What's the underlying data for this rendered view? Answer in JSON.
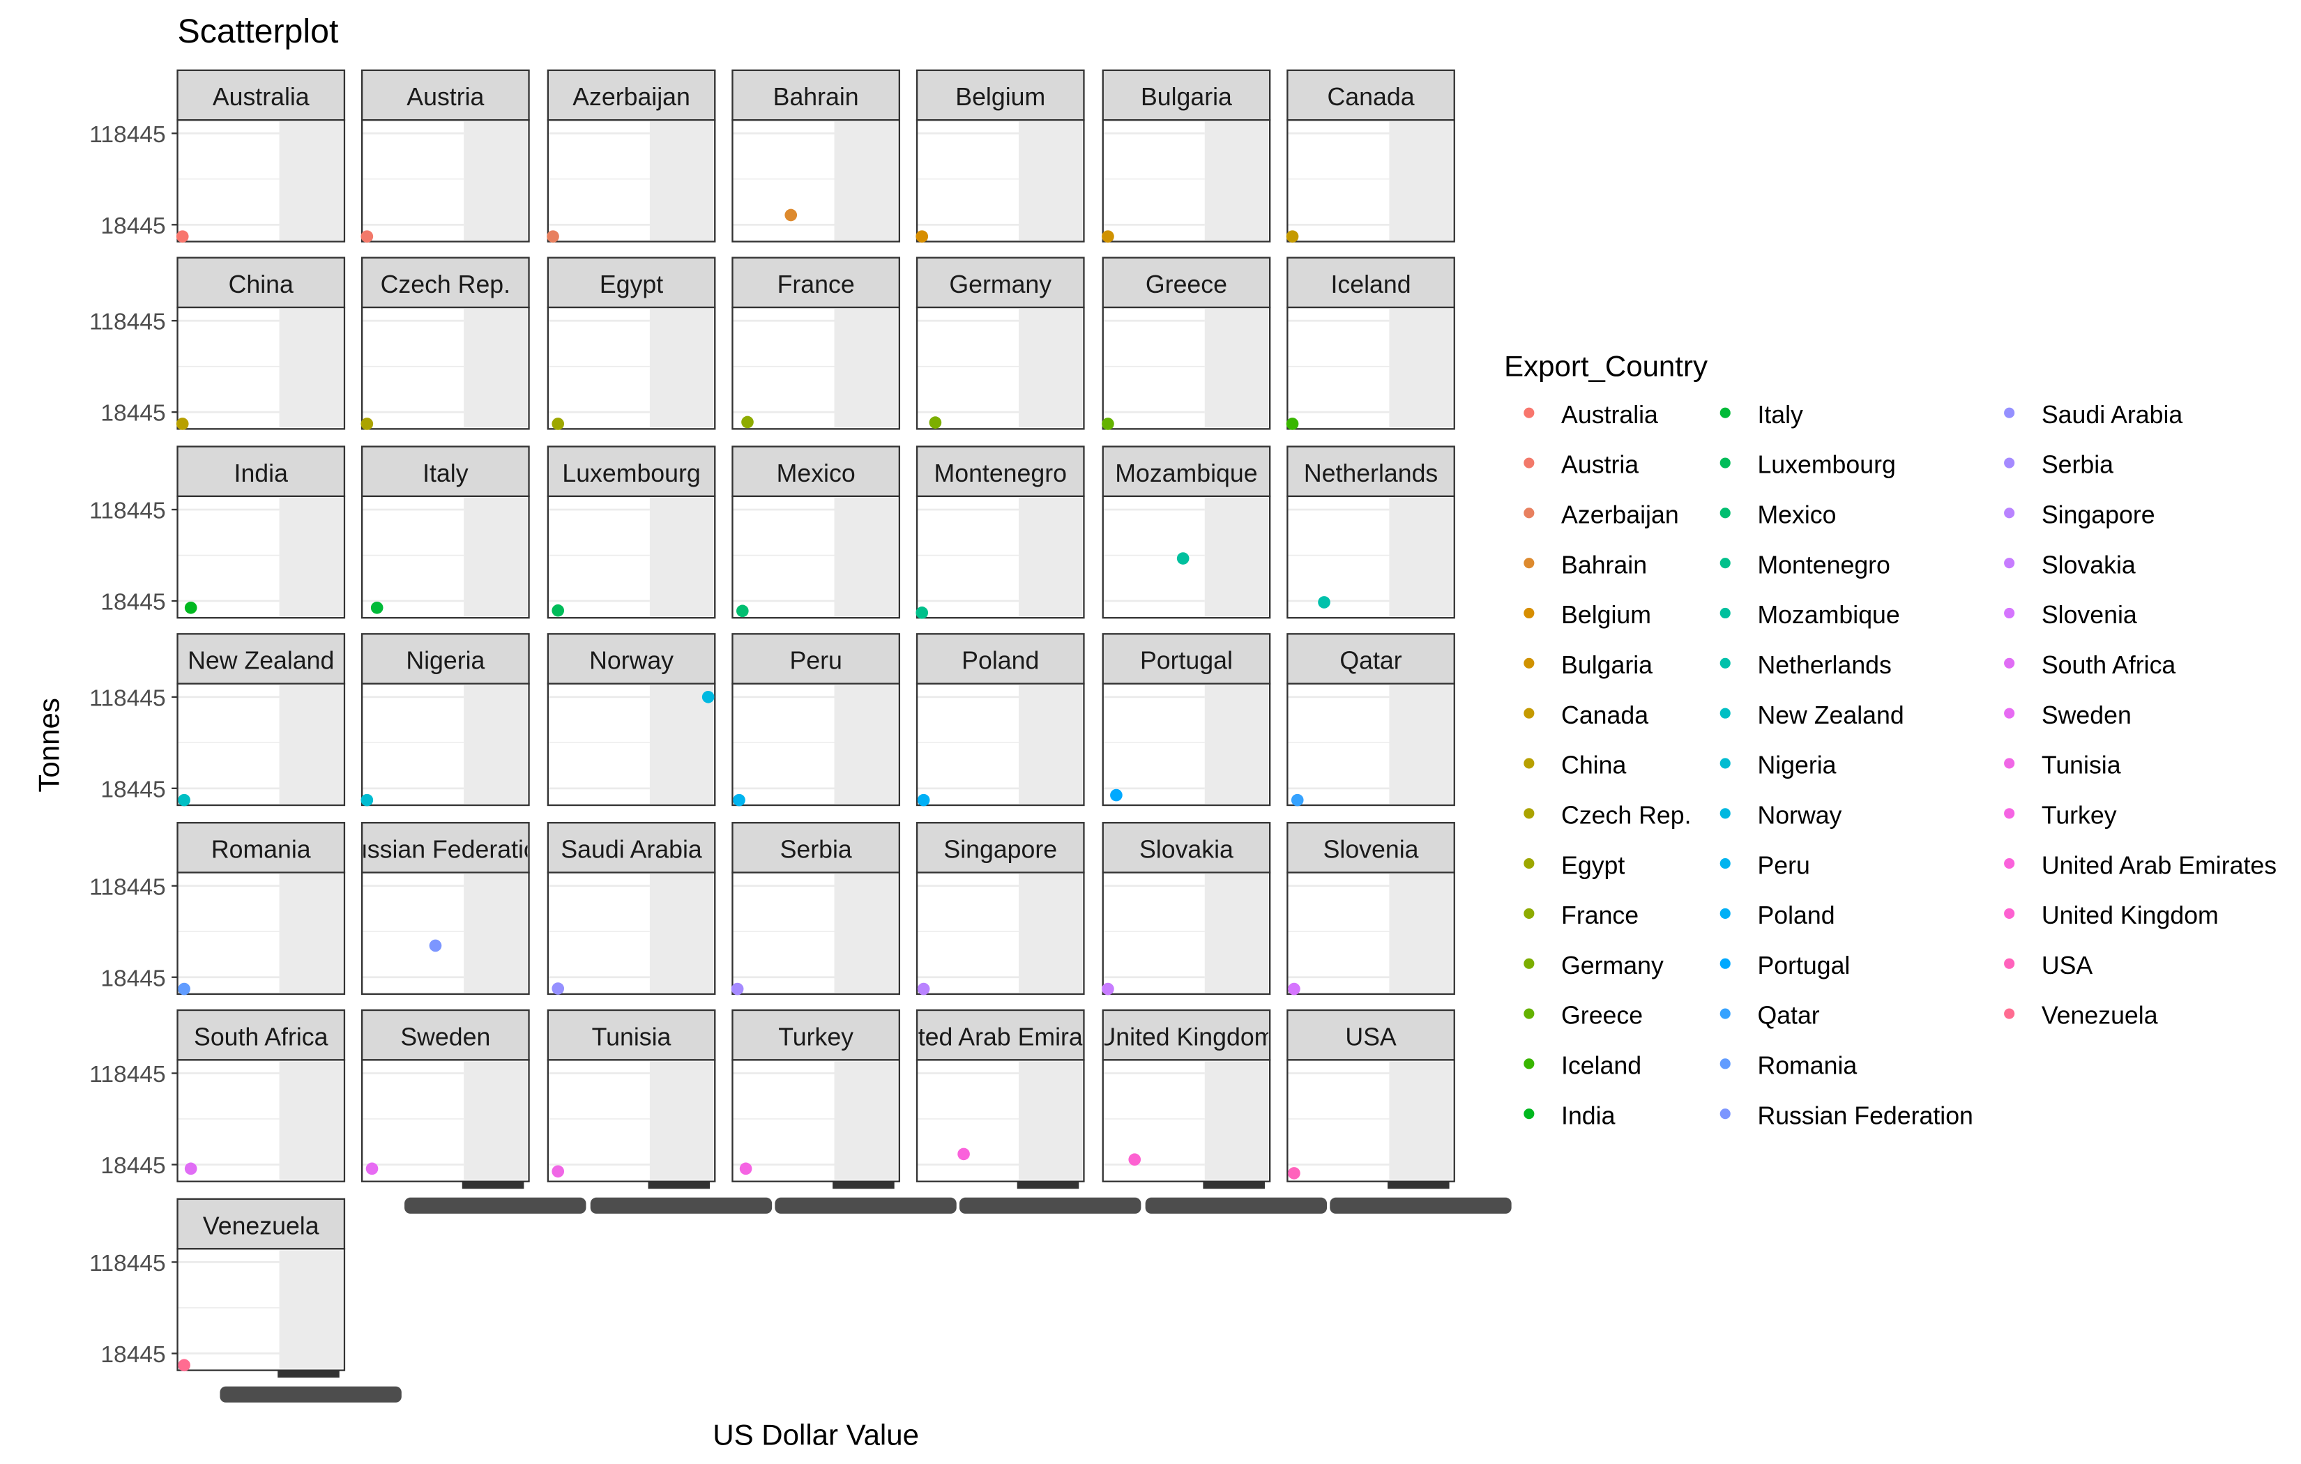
{
  "chart_data": {
    "type": "scatter",
    "title": "Scatterplot",
    "xlabel": "US Dollar Value",
    "ylabel": "Tonnes",
    "y_ticks": [
      "118445",
      "18445"
    ],
    "y_tick_values": [
      118445,
      18445
    ],
    "x_ticks_note": "x-axis tick labels are overplotted and unreadable",
    "legend_title": "Export_Country",
    "legend_position": "right",
    "facet": "Export_Country",
    "facet_layout": {
      "columns": 7,
      "rows": 7
    },
    "panel_titles": [
      "Australia",
      "Austria",
      "Azerbaijan",
      "Bahrain",
      "Belgium",
      "Bulgaria",
      "Canada",
      "China",
      "Czech Rep.",
      "Egypt",
      "France",
      "Germany",
      "Greece",
      "Iceland",
      "India",
      "Italy",
      "Luxembourg",
      "Mexico",
      "Montenegro",
      "Mozambique",
      "Netherlands",
      "New Zealand",
      "Nigeria",
      "Norway",
      "Peru",
      "Poland",
      "Portugal",
      "Qatar",
      "Romania",
      "ussian Federatio",
      "Saudi Arabia",
      "Serbia",
      "Singapore",
      "Slovakia",
      "Slovenia",
      "South Africa",
      "Sweden",
      "Tunisia",
      "Turkey",
      "ted Arab Emira",
      "United Kingdom",
      "USA",
      "Venezuela"
    ],
    "series": [
      {
        "name": "Australia",
        "color": "#F8766D",
        "points": [
          [
            0.03,
            2000
          ]
        ]
      },
      {
        "name": "Austria",
        "color": "#F2796A",
        "points": [
          [
            0.03,
            2000
          ]
        ]
      },
      {
        "name": "Azerbaijan",
        "color": "#E8805F",
        "points": [
          [
            0.03,
            2000
          ]
        ]
      },
      {
        "name": "Bahrain",
        "color": "#DD8A2E",
        "points": [
          [
            0.35,
            29000
          ]
        ]
      },
      {
        "name": "Belgium",
        "color": "#D78E00",
        "points": [
          [
            0.03,
            2000
          ]
        ]
      },
      {
        "name": "Bulgaria",
        "color": "#D09200",
        "points": [
          [
            0.03,
            2000
          ]
        ]
      },
      {
        "name": "Canada",
        "color": "#C59A00",
        "points": [
          [
            0.03,
            2000
          ]
        ]
      },
      {
        "name": "China",
        "color": "#B8A000",
        "points": [
          [
            0.03,
            3000
          ]
        ]
      },
      {
        "name": "Czech Rep.",
        "color": "#ABA300",
        "points": [
          [
            0.03,
            3000
          ]
        ]
      },
      {
        "name": "Egypt",
        "color": "#9DA700",
        "points": [
          [
            0.06,
            4500
          ]
        ]
      },
      {
        "name": "France",
        "color": "#8EAB00",
        "points": [
          [
            0.09,
            7500
          ]
        ]
      },
      {
        "name": "Germany",
        "color": "#7CAE00",
        "points": [
          [
            0.11,
            7000
          ]
        ]
      },
      {
        "name": "Greece",
        "color": "#64B200",
        "points": [
          [
            0.03,
            2500
          ]
        ]
      },
      {
        "name": "Iceland",
        "color": "#39B600",
        "points": [
          [
            0.03,
            2500
          ]
        ]
      },
      {
        "name": "India",
        "color": "#00B81F",
        "points": [
          [
            0.08,
            11000
          ]
        ]
      },
      {
        "name": "Italy",
        "color": "#00BA38",
        "points": [
          [
            0.09,
            11000
          ]
        ]
      },
      {
        "name": "Luxembourg",
        "color": "#00BC59",
        "points": [
          [
            0.06,
            8000
          ]
        ]
      },
      {
        "name": "Mexico",
        "color": "#00BE70",
        "points": [
          [
            0.06,
            7500
          ]
        ]
      },
      {
        "name": "Montenegro",
        "color": "#00C08B",
        "points": [
          [
            0.03,
            5000
          ]
        ]
      },
      {
        "name": "Mozambique",
        "color": "#00C09E",
        "points": [
          [
            0.48,
            65000
          ]
        ]
      },
      {
        "name": "Netherlands",
        "color": "#00C1AB",
        "points": [
          [
            0.22,
            17000
          ]
        ]
      },
      {
        "name": "New Zealand",
        "color": "#00BFC4",
        "points": [
          [
            0.04,
            4000
          ]
        ]
      },
      {
        "name": "Nigeria",
        "color": "#00BCD1",
        "points": [
          [
            0.03,
            4000
          ]
        ]
      },
      {
        "name": "Norway",
        "color": "#00B8E0",
        "points": [
          [
            0.96,
            118445
          ]
        ]
      },
      {
        "name": "Peru",
        "color": "#00B4EF",
        "points": [
          [
            0.04,
            4000
          ]
        ]
      },
      {
        "name": "Poland",
        "color": "#00B0F6",
        "points": [
          [
            0.04,
            4000
          ]
        ]
      },
      {
        "name": "Portugal",
        "color": "#00A9FF",
        "points": [
          [
            0.08,
            11000
          ]
        ]
      },
      {
        "name": "Qatar",
        "color": "#35A2FF",
        "points": [
          [
            0.06,
            4000
          ]
        ]
      },
      {
        "name": "Romania",
        "color": "#619CFF",
        "points": [
          [
            0.04,
            2000
          ]
        ]
      },
      {
        "name": "Russian Federation",
        "color": "#7C96FF",
        "points": [
          [
            0.44,
            53000
          ]
        ]
      },
      {
        "name": "Saudi Arabia",
        "color": "#9590FF",
        "points": [
          [
            0.06,
            6000
          ]
        ]
      },
      {
        "name": "Serbia",
        "color": "#A58AFF",
        "points": [
          [
            0.03,
            3000
          ]
        ]
      },
      {
        "name": "Singapore",
        "color": "#B983FF",
        "points": [
          [
            0.04,
            4000
          ]
        ]
      },
      {
        "name": "Slovakia",
        "color": "#C77CFF",
        "points": [
          [
            0.03,
            3000
          ]
        ]
      },
      {
        "name": "Slovenia",
        "color": "#D575FE",
        "points": [
          [
            0.04,
            3000
          ]
        ]
      },
      {
        "name": "South Africa",
        "color": "#E06DF5",
        "points": [
          [
            0.08,
            14000
          ]
        ]
      },
      {
        "name": "Sweden",
        "color": "#E76BF3",
        "points": [
          [
            0.06,
            14000
          ]
        ]
      },
      {
        "name": "Tunisia",
        "color": "#F067E6",
        "points": [
          [
            0.06,
            11000
          ]
        ]
      },
      {
        "name": "Turkey",
        "color": "#F564E3",
        "points": [
          [
            0.08,
            14000
          ]
        ]
      },
      {
        "name": "United Arab Emirates",
        "color": "#FA62DB",
        "points": [
          [
            0.28,
            30000
          ]
        ]
      },
      {
        "name": "United Kingdom",
        "color": "#FD61D1",
        "points": [
          [
            0.19,
            24000
          ]
        ]
      },
      {
        "name": "USA",
        "color": "#FF62BC",
        "points": [
          [
            0.04,
            9000
          ]
        ]
      },
      {
        "name": "Venezuela",
        "color": "#FF6C91",
        "points": [
          [
            0.04,
            2000
          ]
        ]
      }
    ]
  }
}
